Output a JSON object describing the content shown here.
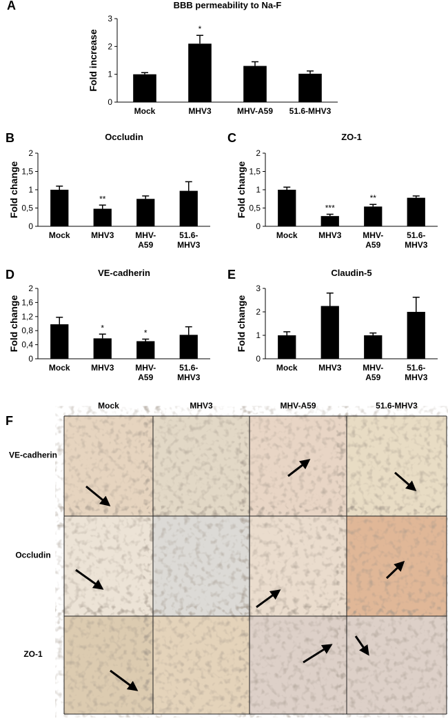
{
  "chart_data": [
    {
      "type": "bar",
      "panel": "A",
      "title": "BBB permeability to Na-F",
      "y_label": "Fold increase",
      "categories": [
        "Mock",
        "MHV3",
        "MHV-A59",
        "51.6-MHV3"
      ],
      "values": [
        1.0,
        2.1,
        1.3,
        1.02
      ],
      "errors": [
        0.06,
        0.3,
        0.15,
        0.1
      ],
      "significance": [
        null,
        "*",
        null,
        null
      ],
      "color": "#000000",
      "ylim": [
        0,
        3
      ],
      "yticks": [
        0,
        1,
        2,
        3
      ]
    },
    {
      "type": "bar",
      "panel": "B",
      "title": "Occludin",
      "y_label": "Fold change",
      "categories": [
        "Mock",
        "MHV3",
        "MHV-\nA59",
        "51.6-\nMHV3"
      ],
      "values": [
        1.0,
        0.48,
        0.75,
        0.97
      ],
      "errors": [
        0.1,
        0.1,
        0.08,
        0.25
      ],
      "significance": [
        null,
        "**",
        null,
        null
      ],
      "color": "#000000",
      "ylim": [
        0,
        2
      ],
      "yticks": [
        0,
        {
          "value": 0.5,
          "label": "0,5"
        },
        1,
        {
          "value": 1.5,
          "label": "1,5"
        },
        2
      ]
    },
    {
      "type": "bar",
      "panel": "C",
      "title": "ZO-1",
      "y_label": "Fold change",
      "categories": [
        "Mock",
        "MHV3",
        "MHV-\nA59",
        "51.6-\nMHV3"
      ],
      "values": [
        1.0,
        0.28,
        0.54,
        0.78
      ],
      "errors": [
        0.07,
        0.05,
        0.06,
        0.05
      ],
      "significance": [
        null,
        "***",
        "**",
        null
      ],
      "color": "#000000",
      "ylim": [
        0,
        2
      ],
      "yticks": [
        0,
        {
          "value": 0.5,
          "label": "0,5"
        },
        1,
        {
          "value": 1.5,
          "label": "1,5"
        },
        2
      ]
    },
    {
      "type": "bar",
      "panel": "D",
      "title": "VE-cadherin",
      "y_label": "Fold change",
      "categories": [
        "Mock",
        "MHV3",
        "MHV-\nA59",
        "51.6-\nMHV3"
      ],
      "values": [
        0.98,
        0.58,
        0.5,
        0.68
      ],
      "errors": [
        0.2,
        0.12,
        0.06,
        0.23
      ],
      "significance": [
        null,
        "*",
        "*",
        null
      ],
      "color": "#000000",
      "ylim": [
        0,
        2
      ],
      "yticks": [
        0,
        {
          "value": 0.4,
          "label": "0,4"
        },
        {
          "value": 0.8,
          "label": "0,8"
        },
        {
          "value": 1.2,
          "label": "1,2"
        },
        {
          "value": 1.6,
          "label": "1,6"
        },
        2
      ]
    },
    {
      "type": "bar",
      "panel": "E",
      "title": "Claudin-5",
      "y_label": "Fold change",
      "categories": [
        "Mock",
        "MHV3",
        "MHV-\nA59",
        "51.6-\nMHV3"
      ],
      "values": [
        1.0,
        2.25,
        1.0,
        2.0
      ],
      "errors": [
        0.15,
        0.55,
        0.1,
        0.62
      ],
      "significance": [
        null,
        null,
        null,
        null
      ],
      "color": "#000000",
      "ylim": [
        0,
        3
      ],
      "yticks": [
        0,
        1,
        2,
        3
      ]
    }
  ],
  "micrographs": {
    "panel": "F",
    "columns": [
      "Mock",
      "MHV3",
      "MHV-A59",
      "51.6-MHV3"
    ],
    "rows": [
      "VE-cadherin",
      "Occludin",
      "ZO-1"
    ]
  }
}
